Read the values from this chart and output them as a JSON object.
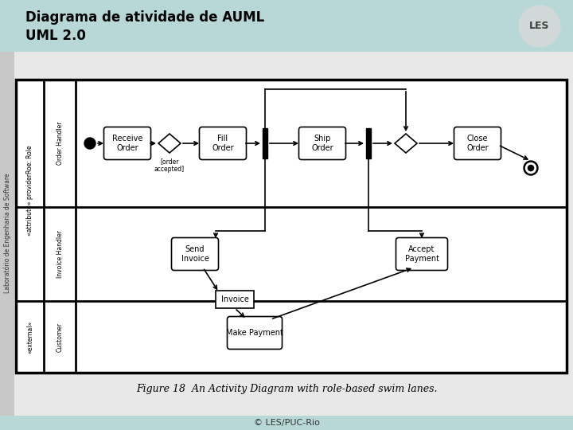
{
  "title_line1": "Diagrama de atividade de AUML",
  "title_line2": "UML 2.0",
  "footer": "© LES/PUC-Rio",
  "caption": "Figure 18  An Activity Diagram with role-based swim lanes.",
  "header_bg": "#b8d8d8",
  "bg_color": "#e8e8e8",
  "diagram_bg": "#ffffff",
  "sidebar_bg": "#c8c8c8",
  "left_sidebar_text": "Laboratório de Engenharia de Software",
  "col1_label": "«attribute» providerRoe: Role",
  "lane1_label": "Order Handler",
  "lane2_label": "Invoice Handler",
  "lane3_col1": "«external»",
  "lane3_col2": "Customer"
}
